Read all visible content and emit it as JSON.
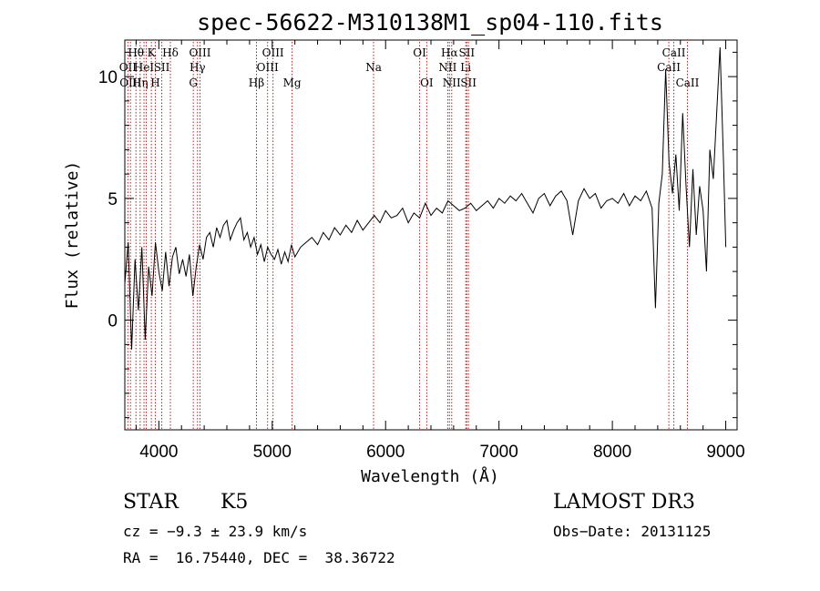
{
  "chart_data": {
    "type": "line",
    "title": "spec-56622-M310138M1_sp04-110.fits",
    "xlabel": "Wavelength (Å)",
    "ylabel": "Flux (relative)",
    "xlim": [
      3700,
      9100
    ],
    "ylim": [
      -4.5,
      11.5
    ],
    "x_ticks": [
      4000,
      5000,
      6000,
      7000,
      8000,
      9000
    ],
    "y_ticks": [
      0,
      5,
      10
    ],
    "x_minor_step": 200,
    "y_minor_step": 1,
    "grid": false,
    "line_color": "#000000",
    "marker_color": "#b22222",
    "series": [
      {
        "x": [
          3700,
          3730,
          3760,
          3790,
          3820,
          3850,
          3880,
          3910,
          3940,
          3970,
          4000,
          4030,
          4060,
          4090,
          4120,
          4150,
          4180,
          4210,
          4240,
          4270,
          4300,
          4330,
          4360,
          4390,
          4420,
          4450,
          4480,
          4510,
          4540,
          4570,
          4600,
          4630,
          4660,
          4690,
          4720,
          4750,
          4780,
          4810,
          4840,
          4870,
          4900,
          4930,
          4960,
          4990,
          5020,
          5050,
          5080,
          5110,
          5140,
          5170,
          5200,
          5250,
          5300,
          5350,
          5400,
          5450,
          5500,
          5550,
          5600,
          5650,
          5700,
          5750,
          5800,
          5850,
          5900,
          5950,
          6000,
          6050,
          6100,
          6150,
          6200,
          6250,
          6300,
          6350,
          6400,
          6450,
          6500,
          6550,
          6600,
          6650,
          6700,
          6750,
          6800,
          6850,
          6900,
          6950,
          7000,
          7050,
          7100,
          7150,
          7200,
          7250,
          7300,
          7350,
          7400,
          7450,
          7500,
          7550,
          7600,
          7650,
          7700,
          7750,
          7800,
          7850,
          7900,
          7950,
          8000,
          8050,
          8100,
          8150,
          8200,
          8250,
          8300,
          8350,
          8380,
          8410,
          8440,
          8470,
          8500,
          8530,
          8560,
          8590,
          8620,
          8650,
          8680,
          8710,
          8740,
          8770,
          8800,
          8830,
          8860,
          8890,
          8920,
          8950,
          8980,
          9000
        ],
        "y": [
          1.5,
          3.2,
          -1.2,
          2.5,
          0.4,
          3.0,
          -0.8,
          2.2,
          1.0,
          3.2,
          2.0,
          1.2,
          2.8,
          1.4,
          2.6,
          3.0,
          1.9,
          2.5,
          1.8,
          2.7,
          1.0,
          2.2,
          3.1,
          2.5,
          3.4,
          3.6,
          3.0,
          3.8,
          3.4,
          3.9,
          4.1,
          3.3,
          3.7,
          4.0,
          4.2,
          3.3,
          3.6,
          3.0,
          3.4,
          2.7,
          3.1,
          2.4,
          3.0,
          2.7,
          2.5,
          2.9,
          2.3,
          2.8,
          2.4,
          3.1,
          2.6,
          3.0,
          3.2,
          3.4,
          3.1,
          3.6,
          3.3,
          3.8,
          3.5,
          3.9,
          3.6,
          4.1,
          3.7,
          4.0,
          4.3,
          4.0,
          4.5,
          4.2,
          4.3,
          4.6,
          4.0,
          4.4,
          4.2,
          4.8,
          4.3,
          4.6,
          4.4,
          4.9,
          4.7,
          4.5,
          4.6,
          4.8,
          4.5,
          4.7,
          4.9,
          4.6,
          5.0,
          4.8,
          5.1,
          4.9,
          5.2,
          4.8,
          4.4,
          5.0,
          5.2,
          4.7,
          5.1,
          5.3,
          4.9,
          3.5,
          4.9,
          5.4,
          5.0,
          5.2,
          4.6,
          4.9,
          5.0,
          4.8,
          5.2,
          4.7,
          5.1,
          4.9,
          5.3,
          4.6,
          0.5,
          4.8,
          6.0,
          10.3,
          6.5,
          5.2,
          6.8,
          4.5,
          8.5,
          5.5,
          3.0,
          6.2,
          3.5,
          5.5,
          4.5,
          2.0,
          7.0,
          5.8,
          8.5,
          11.2,
          6.5,
          3.0
        ]
      }
    ],
    "lines": [
      {
        "wl": 3727,
        "label": "OII",
        "row": 2
      },
      {
        "wl": 3750,
        "label": "OIII",
        "row": 3
      },
      {
        "wl": 3798,
        "label": "Hθ",
        "row": 1
      },
      {
        "wl": 3835,
        "label": "Hη",
        "row": 3
      },
      {
        "wl": 3869,
        "label": "HeI",
        "row": 2
      },
      {
        "wl": 3889,
        "label": "",
        "row": 0
      },
      {
        "wl": 3934,
        "label": "K",
        "row": 1
      },
      {
        "wl": 3969,
        "label": "H",
        "row": 3
      },
      {
        "wl": 4026,
        "label": "SII",
        "row": 2
      },
      {
        "wl": 4102,
        "label": "Hδ",
        "row": 1
      },
      {
        "wl": 4304,
        "label": "G",
        "row": 3
      },
      {
        "wl": 4341,
        "label": "Hγ",
        "row": 2
      },
      {
        "wl": 4363,
        "label": "OIII",
        "row": 1
      },
      {
        "wl": 4861,
        "label": "Hβ",
        "row": 3
      },
      {
        "wl": 4959,
        "label": "OIII",
        "row": 2
      },
      {
        "wl": 5007,
        "label": "OIII",
        "row": 1
      },
      {
        "wl": 5175,
        "label": "Mg",
        "row": 3
      },
      {
        "wl": 5894,
        "label": "Na",
        "row": 2
      },
      {
        "wl": 6300,
        "label": "OI",
        "row": 1
      },
      {
        "wl": 6363,
        "label": "OI",
        "row": 3
      },
      {
        "wl": 6548,
        "label": "NII",
        "row": 2
      },
      {
        "wl": 6563,
        "label": "Hα",
        "row": 1
      },
      {
        "wl": 6583,
        "label": "NII",
        "row": 3
      },
      {
        "wl": 6707,
        "label": "Li",
        "row": 2
      },
      {
        "wl": 6716,
        "label": "SII",
        "row": 1
      },
      {
        "wl": 6731,
        "label": "SII",
        "row": 3
      },
      {
        "wl": 8498,
        "label": "CaII",
        "row": 2
      },
      {
        "wl": 8542,
        "label": "CaII",
        "row": 1
      },
      {
        "wl": 8662,
        "label": "CaII",
        "row": 3
      }
    ]
  },
  "info": {
    "class": "STAR",
    "subclass": "K5",
    "survey": "LAMOST DR3",
    "cz": "cz = −9.3 ± 23.9 km/s",
    "obs_date": "Obs−Date: 20131125",
    "coords": "RA =  16.75440, DEC =  38.36722"
  }
}
